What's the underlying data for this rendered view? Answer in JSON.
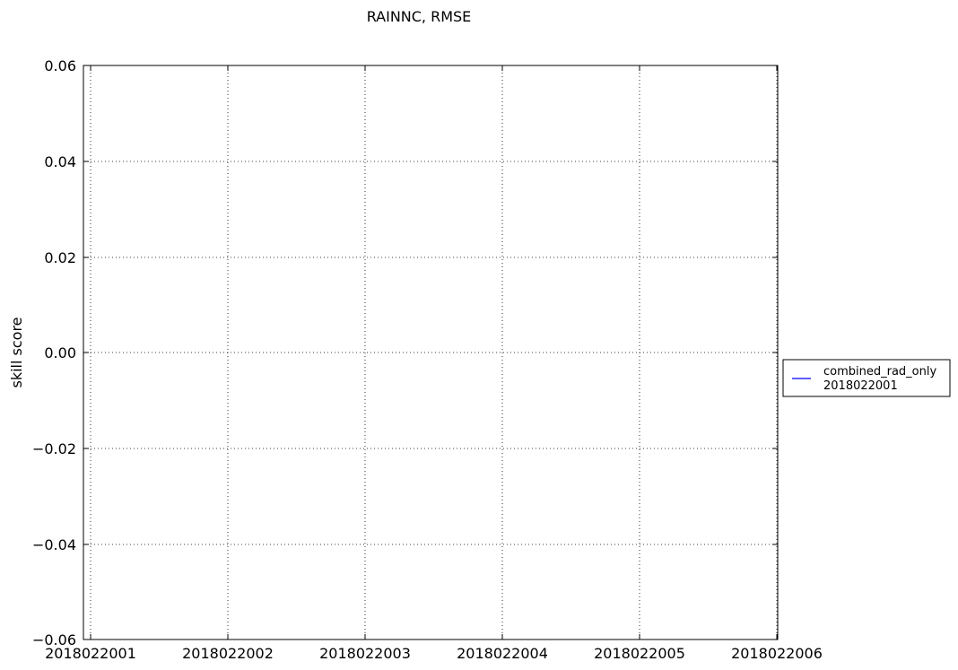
{
  "chart_data": {
    "type": "line",
    "title": "RAINNC, RMSE",
    "xlabel": "",
    "ylabel": "skill score",
    "x_ticks": [
      "2018022001",
      "2018022002",
      "2018022003",
      "2018022004",
      "2018022005",
      "2018022006"
    ],
    "y_ticks": [
      "0.06",
      "0.04",
      "0.02",
      "0.00",
      "−0.02",
      "−0.04",
      "−0.06"
    ],
    "ylim": [
      -0.06,
      0.06
    ],
    "grid": true,
    "legend_position": "outside-right",
    "series": [
      {
        "name": "combined_rad_only\n2018022001",
        "legend_lines": [
          "combined_rad_only",
          "2018022001"
        ],
        "color": "#0000ff",
        "x": [],
        "y": []
      }
    ]
  }
}
